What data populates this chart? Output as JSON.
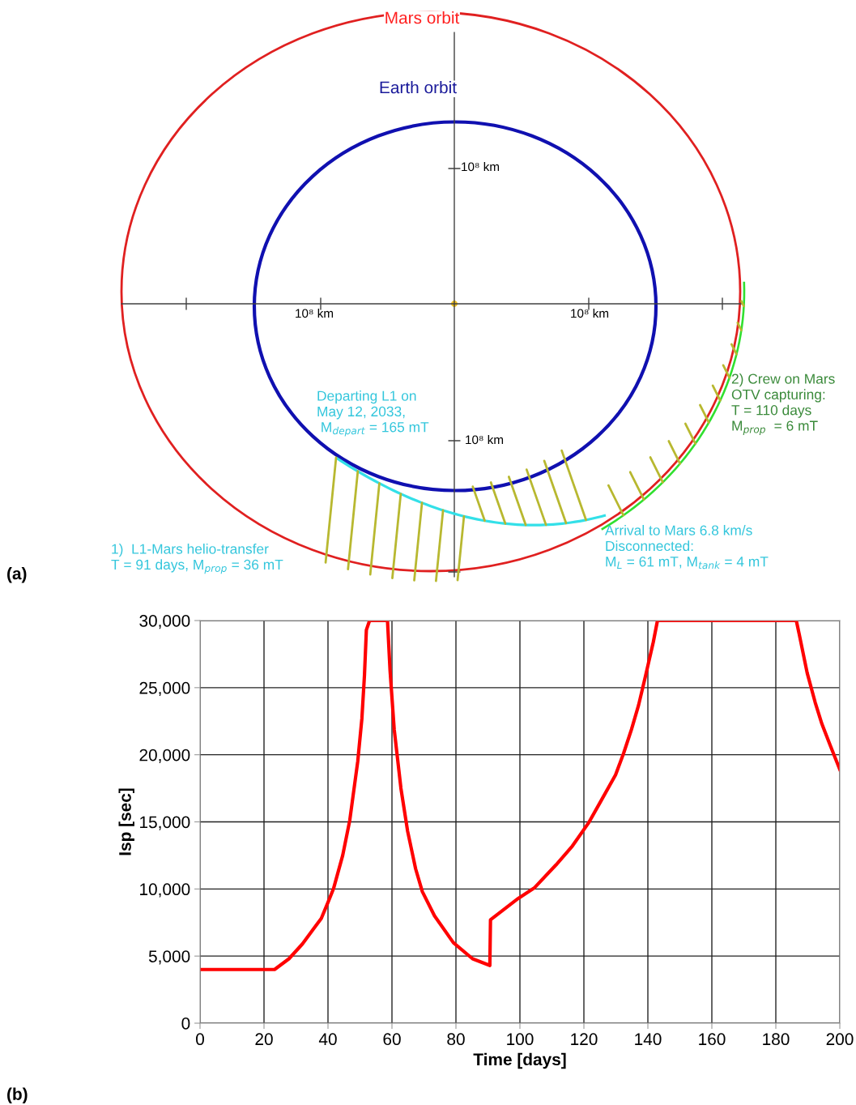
{
  "chart_data": [
    {
      "type": "other",
      "annotations": [
        "(a)",
        "Mars orbit",
        "Earth orbit",
        "10⁸ km",
        "10⁸ km",
        "10⁸ km",
        "10⁸ km",
        "Departing L1 on\nMay 12, 2033,\n M$_{depart}$ = 165 mT",
        "1)  L1-Mars helio-transfer\nT = 91 days, M$_{prop}$ = 36 mT",
        "2) Crew on Mars\nOTV capturing:\nT = 110 days\nM$_{prop}$  = 6 mT",
        "Arrival to Mars 6.8 km/s\nDisconnected:\nM$_{L}$ = 61 mT, M$_{tank}$ = 4 mT"
      ]
    },
    {
      "type": "line",
      "xlabel": "Time [days]",
      "ylabel": "Isp [sec]",
      "annotations": [
        "(b)"
      ],
      "x": [
        0,
        23.3,
        27.8,
        32.0,
        35.4,
        37.9,
        40.0,
        41.7,
        44.6,
        46.8,
        49.3,
        50.6,
        51.4,
        52.0,
        53.0,
        58.6,
        59.4,
        60.7,
        62.8,
        64.9,
        67.4,
        69.5,
        73.3,
        79.2,
        85.2,
        90.6,
        90.8,
        99.5,
        104.6,
        111.3,
        116.4,
        121.4,
        125.2,
        129.9,
        132.4,
        134.9,
        137.1,
        139.2,
        141.7,
        143.0,
        186.4,
        187.3,
        189.8,
        192.3,
        194.4,
        197.0,
        200
      ],
      "series": [
        {
          "color": "#ff0000",
          "values": [
            4000,
            4000,
            4800,
            5900,
            7000,
            7800,
            9000,
            10000,
            12500,
            15100,
            19500,
            22700,
            25900,
            29300,
            30000,
            30000,
            26300,
            21900,
            17500,
            14300,
            11500,
            9800,
            8000,
            6000,
            4800,
            4300,
            7700,
            9300,
            10100,
            11800,
            13200,
            14900,
            16500,
            18500,
            20100,
            21900,
            23700,
            25800,
            28400,
            30000,
            30000,
            29000,
            26100,
            23900,
            22300,
            20700,
            18900
          ]
        }
      ],
      "xlim": [
        0,
        200
      ],
      "ylim": [
        0,
        30000
      ],
      "xticks": [
        0,
        20,
        40,
        60,
        80,
        100,
        120,
        140,
        160,
        180,
        200
      ],
      "yticks": [
        {
          "value": 0,
          "label": "0"
        },
        {
          "value": 5000,
          "label": "5,000"
        },
        {
          "value": 10000,
          "label": "10,000"
        },
        {
          "value": 15000,
          "label": "15,000"
        },
        {
          "value": 20000,
          "label": "20,000"
        },
        {
          "value": 25000,
          "label": "25,000"
        },
        {
          "value": 30000,
          "label": "30,000"
        }
      ],
      "grid": true
    }
  ]
}
